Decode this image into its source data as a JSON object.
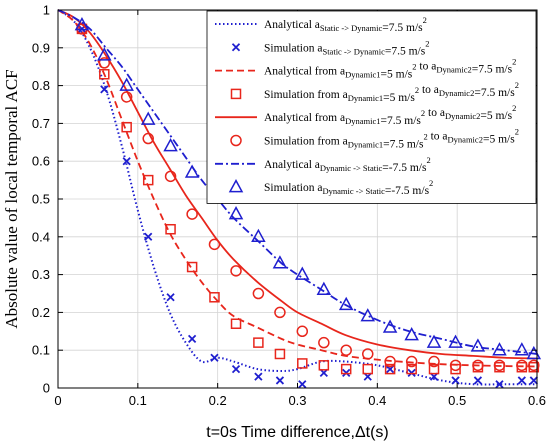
{
  "chart_data": {
    "type": "line",
    "xlabel": "t=0s Time difference,Δt(s)",
    "ylabel": "Absolute value of local temporal ACF",
    "xlim": [
      0,
      0.6
    ],
    "ylim": [
      0,
      1
    ],
    "xticks": [
      0,
      0.1,
      0.2,
      0.3,
      0.4,
      0.5,
      0.6
    ],
    "yticks": [
      0,
      0.1,
      0.2,
      0.3,
      0.4,
      0.5,
      0.6,
      0.7,
      0.8,
      0.9,
      1
    ],
    "xtick_labels": [
      "0",
      "0.1",
      "0.2",
      "0.3",
      "0.4",
      "0.5",
      "0.6"
    ],
    "ytick_labels": [
      "0",
      "0.1",
      "0.2",
      "0.3",
      "0.4",
      "0.5",
      "0.6",
      "0.7",
      "0.8",
      "0.9",
      "1"
    ],
    "grid": true,
    "legend_position": "top-right",
    "series": [
      {
        "name": "Analytical a_Static -> Dynamic=7.5 m/s^2",
        "legend": {
          "pre": "Analytical a",
          "sub": "Static -> Dynamic",
          "post": "=7.5 m/s",
          "sup": "2"
        },
        "color": "#1f1fcf",
        "style": "dotted",
        "kind": "line",
        "x": [
          0,
          0.02,
          0.04,
          0.06,
          0.08,
          0.1,
          0.12,
          0.14,
          0.16,
          0.18,
          0.2,
          0.22,
          0.25,
          0.28,
          0.3,
          0.33,
          0.36,
          0.4,
          0.44,
          0.48,
          0.52,
          0.56,
          0.6
        ],
        "y": [
          1.0,
          0.97,
          0.9,
          0.79,
          0.64,
          0.47,
          0.32,
          0.2,
          0.12,
          0.07,
          0.08,
          0.07,
          0.05,
          0.045,
          0.05,
          0.07,
          0.07,
          0.06,
          0.04,
          0.02,
          0.01,
          0.01,
          0.01
        ]
      },
      {
        "name": "Simulation a_Static -> Dynamic=7.5 m/s^2",
        "legend": {
          "pre": "Simulation a",
          "sub": "Static -> Dynamic",
          "post": "=7.5 m/s",
          "sup": "2"
        },
        "color": "#1f1fcf",
        "marker": "x",
        "kind": "marker",
        "x": [
          0.03,
          0.058,
          0.086,
          0.113,
          0.141,
          0.168,
          0.196,
          0.223,
          0.251,
          0.278,
          0.306,
          0.333,
          0.361,
          0.388,
          0.416,
          0.443,
          0.471,
          0.498,
          0.526,
          0.553,
          0.581,
          0.596
        ],
        "y": [
          0.95,
          0.79,
          0.6,
          0.4,
          0.24,
          0.13,
          0.08,
          0.05,
          0.03,
          0.02,
          0.01,
          0.04,
          0.04,
          0.03,
          0.05,
          0.04,
          0.03,
          0.02,
          0.02,
          0.01,
          0.02,
          0.02
        ]
      },
      {
        "name": "Analytical from a_Dynamic1=5 m/s^2 to a_Dynamic2=7.5 m/s^2",
        "legend": {
          "pre": "Analytical from a",
          "sub": "Dynamic1",
          "post": "=5 m/s",
          "sup": "2",
          "pre2": " to a",
          "sub2": "Dynamic2",
          "post2": "=7.5 m/s",
          "sup2": "2"
        },
        "color": "#e8261c",
        "style": "dashed",
        "kind": "line",
        "x": [
          0,
          0.02,
          0.04,
          0.06,
          0.08,
          0.1,
          0.12,
          0.14,
          0.16,
          0.18,
          0.2,
          0.22,
          0.25,
          0.28,
          0.3,
          0.33,
          0.36,
          0.4,
          0.44,
          0.48,
          0.52,
          0.56,
          0.6
        ],
        "y": [
          1.0,
          0.97,
          0.91,
          0.82,
          0.71,
          0.6,
          0.5,
          0.41,
          0.34,
          0.28,
          0.23,
          0.19,
          0.16,
          0.13,
          0.115,
          0.1,
          0.085,
          0.075,
          0.068,
          0.063,
          0.06,
          0.058,
          0.057
        ]
      },
      {
        "name": "Simulation from a_Dynamic1=5 m/s^2 to a_Dynamic2=7.5 m/s^2",
        "legend": {
          "pre": "Simulation from a",
          "sub": "Dynamic1",
          "post": "=5 m/s",
          "sup": "2",
          "pre2": " to a",
          "sub2": "Dynamic2",
          "post2": "=7.5 m/s",
          "sup2": "2"
        },
        "color": "#e8261c",
        "marker": "square",
        "kind": "marker",
        "x": [
          0.03,
          0.058,
          0.086,
          0.113,
          0.141,
          0.168,
          0.196,
          0.223,
          0.251,
          0.278,
          0.306,
          0.333,
          0.361,
          0.388,
          0.416,
          0.443,
          0.471,
          0.498,
          0.526,
          0.553,
          0.581,
          0.596
        ],
        "y": [
          0.95,
          0.83,
          0.69,
          0.55,
          0.42,
          0.32,
          0.24,
          0.17,
          0.12,
          0.09,
          0.065,
          0.06,
          0.05,
          0.05,
          0.05,
          0.05,
          0.05,
          0.05,
          0.055,
          0.055,
          0.055,
          0.055
        ]
      },
      {
        "name": "Analytical from a_Dynamic1=7.5 m/s^2 to a_Dynamic2=5 m/s^2",
        "legend": {
          "pre": "Analytical from a",
          "sub": "Dynamic1",
          "post": "=7.5 m/s",
          "sup": "2",
          "pre2": " to a",
          "sub2": "Dynamic2",
          "post2": "=5 m/s",
          "sup2": "2"
        },
        "color": "#e8261c",
        "style": "solid",
        "kind": "line",
        "x": [
          0,
          0.02,
          0.04,
          0.06,
          0.08,
          0.1,
          0.12,
          0.14,
          0.16,
          0.18,
          0.2,
          0.22,
          0.25,
          0.28,
          0.3,
          0.33,
          0.36,
          0.4,
          0.44,
          0.48,
          0.52,
          0.56,
          0.6
        ],
        "y": [
          1.0,
          0.98,
          0.94,
          0.88,
          0.81,
          0.73,
          0.65,
          0.58,
          0.51,
          0.45,
          0.39,
          0.34,
          0.28,
          0.23,
          0.2,
          0.17,
          0.14,
          0.115,
          0.1,
          0.09,
          0.085,
          0.08,
          0.078
        ]
      },
      {
        "name": "Simulation from a_Dynamic1=7.5 m/s^2 to a_Dynamic2=5 m/s^2",
        "legend": {
          "pre": "Simulation from a",
          "sub": "Dynamic1",
          "post": "=7.5 m/s",
          "sup": "2",
          "pre2": " to a",
          "sub2": "Dynamic2",
          "post2": "=5 m/s",
          "sup2": "2"
        },
        "color": "#e8261c",
        "marker": "circle",
        "kind": "marker",
        "x": [
          0.03,
          0.058,
          0.086,
          0.113,
          0.141,
          0.168,
          0.196,
          0.223,
          0.251,
          0.278,
          0.306,
          0.333,
          0.361,
          0.388,
          0.416,
          0.443,
          0.471,
          0.498,
          0.526,
          0.553,
          0.581,
          0.596
        ],
        "y": [
          0.95,
          0.86,
          0.77,
          0.66,
          0.56,
          0.46,
          0.38,
          0.31,
          0.25,
          0.2,
          0.15,
          0.12,
          0.1,
          0.09,
          0.07,
          0.07,
          0.07,
          0.06,
          0.06,
          0.06,
          0.06,
          0.06
        ]
      },
      {
        "name": "Analytical a_Dynamic -> Static=-7.5 m/s^2",
        "legend": {
          "pre": "Analytical a",
          "sub": "Dynamic -> Static",
          "post": "=-7.5 m/s",
          "sup": "2"
        },
        "color": "#1f1fcf",
        "style": "dashdot",
        "kind": "line",
        "x": [
          0,
          0.02,
          0.04,
          0.06,
          0.08,
          0.1,
          0.12,
          0.14,
          0.16,
          0.18,
          0.2,
          0.22,
          0.25,
          0.28,
          0.3,
          0.33,
          0.36,
          0.4,
          0.44,
          0.48,
          0.52,
          0.56,
          0.6
        ],
        "y": [
          1.0,
          0.98,
          0.95,
          0.9,
          0.85,
          0.79,
          0.73,
          0.67,
          0.61,
          0.55,
          0.5,
          0.45,
          0.39,
          0.33,
          0.3,
          0.26,
          0.22,
          0.18,
          0.15,
          0.13,
          0.11,
          0.1,
          0.09
        ]
      },
      {
        "name": "Simulation a_Dynamic -> Static=-7.5 m/s^2",
        "legend": {
          "pre": "Simulation a",
          "sub": "Dynamic -> Static",
          "post": "=-7.5 m/s",
          "sup": "2"
        },
        "color": "#1f1fcf",
        "marker": "triangle",
        "kind": "marker",
        "x": [
          0.03,
          0.058,
          0.086,
          0.113,
          0.141,
          0.168,
          0.196,
          0.223,
          0.251,
          0.278,
          0.306,
          0.333,
          0.361,
          0.388,
          0.416,
          0.443,
          0.471,
          0.498,
          0.526,
          0.553,
          0.581,
          0.596
        ],
        "y": [
          0.96,
          0.88,
          0.8,
          0.71,
          0.64,
          0.57,
          0.51,
          0.46,
          0.4,
          0.33,
          0.3,
          0.26,
          0.22,
          0.19,
          0.16,
          0.14,
          0.12,
          0.12,
          0.11,
          0.1,
          0.1,
          0.09
        ]
      }
    ]
  }
}
